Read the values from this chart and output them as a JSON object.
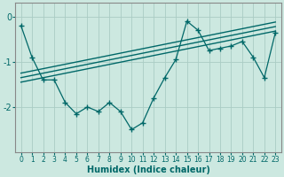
{
  "xlabel": "Humidex (Indice chaleur)",
  "bg_color": "#cce8e0",
  "line_color": "#006868",
  "grid_color": "#aaccc4",
  "spine_color": "#888888",
  "xlim": [
    -0.5,
    23.5
  ],
  "ylim": [
    -3.0,
    0.3
  ],
  "yticks": [
    0,
    -1,
    -2
  ],
  "xticks": [
    0,
    1,
    2,
    3,
    4,
    5,
    6,
    7,
    8,
    9,
    10,
    11,
    12,
    13,
    14,
    15,
    16,
    17,
    18,
    19,
    20,
    21,
    22,
    23
  ],
  "main_x": [
    0,
    1,
    2,
    3,
    4,
    5,
    6,
    7,
    8,
    9,
    10,
    11,
    12,
    13,
    14,
    15,
    16,
    17,
    18,
    19,
    20,
    21,
    22,
    23
  ],
  "main_y": [
    -0.2,
    -0.9,
    -1.4,
    -1.4,
    -1.9,
    -2.15,
    -2.0,
    -2.1,
    -1.9,
    -2.1,
    -2.5,
    -2.35,
    -1.8,
    -1.35,
    -0.95,
    -0.1,
    -0.3,
    -0.75,
    -0.7,
    -0.65,
    -0.55,
    -0.9,
    -1.35,
    -0.35
  ],
  "reg_lines": [
    {
      "x": [
        0,
        23
      ],
      "y": [
        -1.45,
        -0.32
      ]
    },
    {
      "x": [
        0,
        23
      ],
      "y": [
        -1.35,
        -0.22
      ]
    },
    {
      "x": [
        0,
        23
      ],
      "y": [
        -1.25,
        -0.12
      ]
    }
  ]
}
